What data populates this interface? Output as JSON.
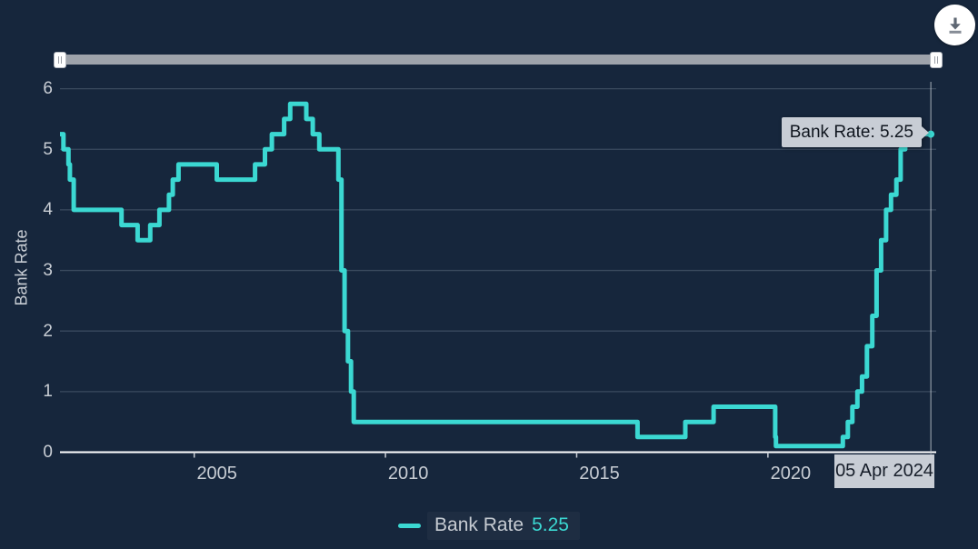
{
  "colors": {
    "background": "#16263C",
    "series": "#3BD8D2",
    "grid": "#3A4A5E",
    "axis_line": "#FFFFFF",
    "tick": "#C9CED6",
    "label_text": "#C8CDD4",
    "tooltip_bg": "#C8CDD5",
    "crosshair": "#C2C8D0"
  },
  "toolbar": {
    "download_icon": "download-icon"
  },
  "chart_data": {
    "type": "line",
    "step": true,
    "title": "",
    "xlabel": "",
    "ylabel": "Bank Rate",
    "xlim": [
      2001.49,
      2024.4
    ],
    "ylim": [
      0,
      6.114
    ],
    "grid": "horizontal-only",
    "y_ticks": [
      0,
      1,
      2,
      3,
      4,
      5,
      6
    ],
    "x_ticks": [
      {
        "value": 2005,
        "label": "2005"
      },
      {
        "value": 2010,
        "label": "2010"
      },
      {
        "value": 2015,
        "label": "2015"
      },
      {
        "value": 2020,
        "label": "2020"
      }
    ],
    "series": [
      {
        "name": "Bank Rate",
        "color": "#3BD8D2",
        "points": [
          [
            2001.49,
            5.25
          ],
          [
            2001.58,
            5.0
          ],
          [
            2001.71,
            4.75
          ],
          [
            2001.75,
            4.5
          ],
          [
            2001.85,
            4.0
          ],
          [
            2003.1,
            3.75
          ],
          [
            2003.52,
            3.5
          ],
          [
            2003.85,
            3.75
          ],
          [
            2004.09,
            4.0
          ],
          [
            2004.34,
            4.25
          ],
          [
            2004.44,
            4.5
          ],
          [
            2004.59,
            4.75
          ],
          [
            2005.59,
            4.5
          ],
          [
            2006.59,
            4.75
          ],
          [
            2006.85,
            5.0
          ],
          [
            2007.03,
            5.25
          ],
          [
            2007.35,
            5.5
          ],
          [
            2007.51,
            5.75
          ],
          [
            2007.93,
            5.5
          ],
          [
            2008.1,
            5.25
          ],
          [
            2008.27,
            5.0
          ],
          [
            2008.77,
            4.5
          ],
          [
            2008.85,
            3.0
          ],
          [
            2008.93,
            2.0
          ],
          [
            2009.02,
            1.5
          ],
          [
            2009.1,
            1.0
          ],
          [
            2009.17,
            0.5
          ],
          [
            2016.59,
            0.25
          ],
          [
            2017.84,
            0.5
          ],
          [
            2018.58,
            0.75
          ],
          [
            2020.19,
            0.25
          ],
          [
            2020.21,
            0.1
          ],
          [
            2021.96,
            0.25
          ],
          [
            2022.09,
            0.5
          ],
          [
            2022.21,
            0.75
          ],
          [
            2022.34,
            1.0
          ],
          [
            2022.46,
            1.25
          ],
          [
            2022.59,
            1.75
          ],
          [
            2022.73,
            2.25
          ],
          [
            2022.84,
            3.0
          ],
          [
            2022.96,
            3.5
          ],
          [
            2023.09,
            4.0
          ],
          [
            2023.22,
            4.25
          ],
          [
            2023.36,
            4.5
          ],
          [
            2023.47,
            5.0
          ],
          [
            2023.59,
            5.25
          ],
          [
            2024.26,
            5.25
          ]
        ]
      }
    ],
    "end_marker": {
      "x": 2024.26,
      "y": 5.25
    },
    "crosshair_x": 2024.26,
    "legend_value": "5.25",
    "tooltip_text": "Bank Rate: 5.25",
    "crosshair_label": "05 Apr 2024",
    "legend_position": "bottom-center"
  }
}
